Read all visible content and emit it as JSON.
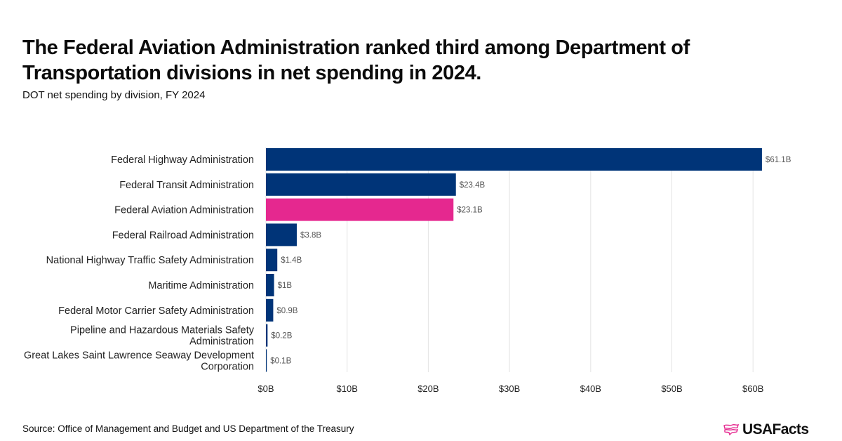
{
  "header": {
    "title": "The Federal Aviation Administration ranked third among Department of Transportation divisions in net spending in 2024.",
    "subtitle": "DOT net spending by division, FY 2024"
  },
  "footer": {
    "source": "Source: Office of Management and Budget and US Department of the Treasury",
    "logo_text": "USAFacts"
  },
  "colors": {
    "default_bar": "#003478",
    "highlight_bar": "#e5288f",
    "grid": "#e3e3e3",
    "logo_accent": "#e5288f"
  },
  "chart_data": {
    "type": "bar",
    "orientation": "horizontal",
    "title": "The Federal Aviation Administration ranked third among Department of Transportation divisions in net spending in 2024.",
    "subtitle": "DOT net spending by division, FY 2024",
    "xlabel": "",
    "ylabel": "",
    "unit": "billions USD",
    "xlim": [
      0,
      65
    ],
    "xticks": [
      0,
      10,
      20,
      30,
      40,
      50,
      60
    ],
    "xtick_labels": [
      "$0B",
      "$10B",
      "$20B",
      "$30B",
      "$40B",
      "$50B",
      "$60B"
    ],
    "grid": "vertical",
    "legend": "none",
    "categories": [
      [
        "Federal Highway Administration"
      ],
      [
        "Federal Transit Administration"
      ],
      [
        "Federal Aviation Administration"
      ],
      [
        "Federal Railroad Administration"
      ],
      [
        "National Highway Traffic Safety Administration"
      ],
      [
        "Maritime Administration"
      ],
      [
        "Federal Motor Carrier Safety Administration"
      ],
      [
        "Pipeline and Hazardous Materials Safety",
        "Administration"
      ],
      [
        "Great Lakes Saint Lawrence Seaway Development",
        "Corporation"
      ]
    ],
    "values": [
      61.1,
      23.4,
      23.1,
      3.8,
      1.4,
      1.0,
      0.9,
      0.2,
      0.1
    ],
    "value_labels": [
      "$61.1B",
      "$23.4B",
      "$23.1B",
      "$3.8B",
      "$1.4B",
      "$1B",
      "$0.9B",
      "$0.2B",
      "$0.1B"
    ],
    "highlight": [
      false,
      false,
      true,
      false,
      false,
      false,
      false,
      false,
      false
    ]
  }
}
